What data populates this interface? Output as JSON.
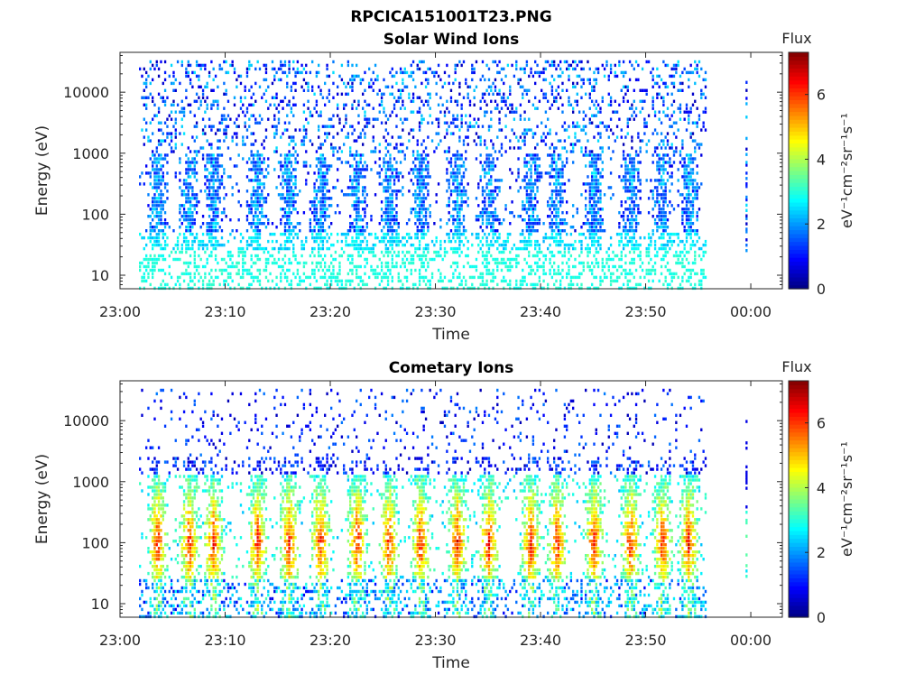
{
  "figure": {
    "filename_title": "RPCICA151001T23.PNG"
  },
  "colorbar": {
    "label": "Flux",
    "unit_label": "eV⁻¹cm⁻²sr⁻¹s⁻¹",
    "ticks": [
      "0",
      "2",
      "4",
      "6"
    ],
    "range": [
      0,
      7.3
    ],
    "colormap": "jet"
  },
  "chart_data": [
    {
      "type": "heatmap",
      "title": "Solar Wind Ions",
      "xlabel": "Time",
      "ylabel": "Energy (eV)",
      "x_ticks": [
        "23:00",
        "23:10",
        "23:20",
        "23:30",
        "23:40",
        "23:50",
        "00:00"
      ],
      "y_ticks": [
        "10",
        "100",
        "1000",
        "10000"
      ],
      "y_scale": "log",
      "x_range_minutes": [
        0,
        63
      ],
      "y_range_eV": [
        6,
        45000
      ],
      "data_time_span": [
        "23:01",
        "23:56"
      ],
      "extra_column_near": "00:00",
      "description_of_bursts_minutes": [
        3.5,
        6.5,
        8.8,
        13,
        16,
        19,
        22.5,
        25.5,
        28.5,
        32,
        35,
        39,
        41.5,
        45,
        48.5,
        51.5,
        54
      ]
    },
    {
      "type": "heatmap",
      "title": "Cometary Ions",
      "xlabel": "Time",
      "ylabel": "Energy (eV)",
      "x_ticks": [
        "23:00",
        "23:10",
        "23:20",
        "23:30",
        "23:40",
        "23:50",
        "00:00"
      ],
      "y_ticks": [
        "10",
        "100",
        "1000",
        "10000"
      ],
      "y_scale": "log",
      "x_range_minutes": [
        0,
        63
      ],
      "y_range_eV": [
        6,
        45000
      ],
      "data_time_span": [
        "23:01",
        "23:56"
      ],
      "extra_column_near": "00:00",
      "description_of_bursts_minutes": [
        3.5,
        6.5,
        8.8,
        13,
        16,
        19,
        22.5,
        25.5,
        28.5,
        32,
        35,
        39,
        41.5,
        45,
        48.5,
        51.5,
        54
      ]
    }
  ]
}
